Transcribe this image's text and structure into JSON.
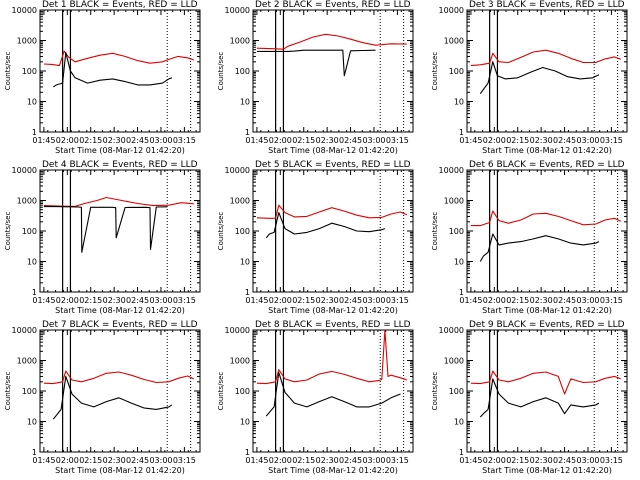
{
  "chart_data": {
    "type": "line",
    "layout": "3x3 grid",
    "colors": {
      "events": "#000000",
      "lld": "#e00000",
      "background": "#ffffff",
      "axis": "#000000"
    },
    "ylabel": "Counts/sec",
    "xlabel": "Start Time (08-Mar-12 01:42:20)",
    "x_tick_labels": [
      "01:45",
      "02:00",
      "02:15",
      "02:30",
      "02:45",
      "03:00",
      "03:15"
    ],
    "x_ticks_minutes": [
      0,
      15,
      30,
      45,
      60,
      75,
      90
    ],
    "x_range_minutes": [
      -2.5,
      100
    ],
    "y_scale": "log",
    "y_range": [
      1,
      10000
    ],
    "y_tick_labels": [
      "1",
      "10",
      "100",
      "1000",
      "10000"
    ],
    "y_ticks": [
      1,
      10,
      100,
      1000,
      10000
    ],
    "vertical_lines_solid_minutes": [
      12,
      17
    ],
    "vertical_lines_dotted_minutes": [
      79,
      94
    ],
    "panels": [
      {
        "title": "Det 1 BLACK = Events, RED = LLD",
        "series": [
          {
            "name": "RED = LLD",
            "color": "#e00000",
            "x": [
              0,
              5,
              10,
              13,
              16,
              20,
              28,
              36,
              44,
              52,
              60,
              68,
              76,
              80,
              86,
              92,
              96
            ],
            "y": [
              170,
              165,
              150,
              450,
              280,
              200,
              260,
              330,
              380,
              300,
              220,
              180,
              200,
              240,
              300,
              270,
              230
            ]
          },
          {
            "name": "BLACK = Events",
            "color": "#000000",
            "x": [
              6,
              8,
              12,
              14,
              17,
              20,
              28,
              36,
              44,
              52,
              60,
              68,
              76,
              80,
              82
            ],
            "y": [
              30,
              35,
              40,
              400,
              100,
              60,
              40,
              50,
              55,
              45,
              35,
              35,
              40,
              55,
              60
            ]
          }
        ]
      },
      {
        "title": "Det 2 BLACK = Events, RED = LLD",
        "series": [
          {
            "name": "RED = LLD",
            "color": "#e00000",
            "x": [
              0,
              10,
              17,
              20,
              28,
              36,
              44,
              52,
              60,
              68,
              76,
              86,
              96
            ],
            "y": [
              560,
              540,
              520,
              650,
              900,
              1300,
              1600,
              1400,
              1100,
              850,
              700,
              780,
              760
            ]
          },
          {
            "name": "BLACK = Events",
            "color": "#000000",
            "x": [
              0,
              10,
              20,
              24,
              26,
              30,
              55,
              56,
              60,
              68,
              76
            ],
            "y": [
              440,
              440,
              440,
              450,
              460,
              480,
              480,
              70,
              460,
              470,
              480
            ]
          }
        ]
      },
      {
        "title": "Det 3 BLACK = Events, RED = LLD",
        "series": [
          {
            "name": "RED = LLD",
            "color": "#e00000",
            "x": [
              0,
              6,
              12,
              14,
              18,
              24,
              32,
              40,
              48,
              56,
              64,
              72,
              80,
              86,
              92,
              96
            ],
            "y": [
              150,
              160,
              180,
              380,
              200,
              190,
              280,
              420,
              480,
              380,
              260,
              190,
              190,
              250,
              290,
              240
            ]
          },
          {
            "name": "BLACK = Events",
            "color": "#000000",
            "x": [
              6,
              8,
              11,
              14,
              17,
              22,
              30,
              38,
              46,
              54,
              62,
              70,
              78,
              82
            ],
            "y": [
              18,
              25,
              40,
              200,
              70,
              55,
              60,
              90,
              130,
              100,
              65,
              55,
              60,
              75
            ]
          }
        ]
      },
      {
        "title": "Det 4 BLACK = Events, RED = LLD",
        "series": [
          {
            "name": "RED = LLD",
            "color": "#e00000",
            "x": [
              0,
              12,
              20,
              26,
              34,
              40,
              50,
              60,
              70,
              80,
              88,
              96
            ],
            "y": [
              680,
              650,
              640,
              800,
              1000,
              1250,
              1000,
              800,
              680,
              700,
              850,
              780
            ]
          },
          {
            "name": "BLACK = Events",
            "color": "#000000",
            "x": [
              0,
              8,
              16,
              22,
              24,
              24.3,
              30,
              44,
              46,
              46.3,
              52,
              66,
              68,
              68.3,
              72,
              79
            ],
            "y": [
              630,
              630,
              620,
              610,
              600,
              20,
              600,
              600,
              580,
              60,
              590,
              600,
              580,
              25,
              610,
              620
            ]
          }
        ]
      },
      {
        "title": "Det 5 BLACK = Events, RED = LLD",
        "series": [
          {
            "name": "RED = LLD",
            "color": "#e00000",
            "x": [
              0,
              8,
              12,
              14,
              18,
              24,
              32,
              40,
              48,
              56,
              64,
              72,
              80,
              86,
              92,
              96
            ],
            "y": [
              270,
              260,
              260,
              700,
              400,
              290,
              300,
              420,
              580,
              450,
              330,
              270,
              280,
              360,
              420,
              340
            ]
          },
          {
            "name": "BLACK = Events",
            "color": "#000000",
            "x": [
              6,
              8,
              11,
              14,
              18,
              24,
              32,
              40,
              48,
              56,
              64,
              72,
              80,
              82
            ],
            "y": [
              60,
              80,
              90,
              400,
              120,
              80,
              90,
              120,
              180,
              140,
              100,
              95,
              110,
              120
            ]
          }
        ]
      },
      {
        "title": "Det 6 BLACK = Events, RED = LLD",
        "series": [
          {
            "name": "RED = LLD",
            "color": "#e00000",
            "x": [
              0,
              6,
              12,
              14,
              18,
              24,
              32,
              40,
              48,
              56,
              64,
              72,
              80,
              86,
              92,
              96
            ],
            "y": [
              150,
              150,
              190,
              450,
              220,
              180,
              230,
              360,
              380,
              300,
              220,
              160,
              170,
              230,
              260,
              210
            ]
          },
          {
            "name": "BLACK = Events",
            "color": "#000000",
            "x": [
              6,
              8,
              11,
              14,
              18,
              24,
              32,
              40,
              48,
              56,
              64,
              72,
              80,
              82
            ],
            "y": [
              10,
              15,
              20,
              80,
              35,
              40,
              45,
              55,
              70,
              55,
              40,
              35,
              40,
              45
            ]
          }
        ]
      },
      {
        "title": "Det 7 BLACK = Events, RED = LLD",
        "series": [
          {
            "name": "RED = LLD",
            "color": "#e00000",
            "x": [
              0,
              6,
              12,
              14,
              18,
              24,
              32,
              40,
              48,
              56,
              64,
              72,
              80,
              86,
              92,
              96
            ],
            "y": [
              180,
              175,
              200,
              450,
              230,
              200,
              260,
              380,
              420,
              330,
              240,
              190,
              200,
              260,
              310,
              250
            ]
          },
          {
            "name": "BLACK = Events",
            "color": "#000000",
            "x": [
              6,
              8,
              11,
              14,
              18,
              24,
              32,
              40,
              48,
              56,
              64,
              72,
              80,
              82
            ],
            "y": [
              12,
              16,
              25,
              300,
              80,
              40,
              30,
              45,
              60,
              40,
              28,
              25,
              30,
              35
            ]
          }
        ]
      },
      {
        "title": "Det 8 BLACK = Events, RED = LLD",
        "series": [
          {
            "name": "RED = LLD",
            "color": "#e00000",
            "x": [
              0,
              6,
              12,
              14,
              18,
              24,
              32,
              40,
              48,
              56,
              64,
              72,
              78,
              80,
              82,
              84,
              86,
              92,
              96
            ],
            "y": [
              180,
              175,
              200,
              500,
              250,
              200,
              230,
              360,
              440,
              350,
              260,
              200,
              220,
              240,
              10000,
              300,
              330,
              270,
              230
            ]
          },
          {
            "name": "BLACK = Events",
            "color": "#000000",
            "x": [
              6,
              8,
              11,
              14,
              18,
              24,
              32,
              40,
              48,
              56,
              64,
              72,
              80,
              86,
              92
            ],
            "y": [
              15,
              20,
              30,
              400,
              90,
              40,
              30,
              45,
              65,
              45,
              30,
              30,
              40,
              60,
              80
            ]
          }
        ]
      },
      {
        "title": "Det 9 BLACK = Events, RED = LLD",
        "series": [
          {
            "name": "RED = LLD",
            "color": "#e00000",
            "x": [
              0,
              6,
              12,
              14,
              18,
              24,
              32,
              40,
              48,
              56,
              60,
              64,
              72,
              80,
              86,
              92,
              96
            ],
            "y": [
              180,
              175,
              200,
              450,
              230,
              200,
              260,
              380,
              420,
              300,
              80,
              250,
              190,
              200,
              260,
              300,
              250
            ]
          },
          {
            "name": "BLACK = Events",
            "color": "#000000",
            "x": [
              6,
              8,
              11,
              14,
              18,
              24,
              32,
              40,
              48,
              56,
              60,
              64,
              72,
              80,
              82
            ],
            "y": [
              14,
              18,
              25,
              250,
              80,
              40,
              30,
              45,
              60,
              40,
              18,
              35,
              30,
              35,
              40
            ]
          }
        ]
      }
    ]
  }
}
